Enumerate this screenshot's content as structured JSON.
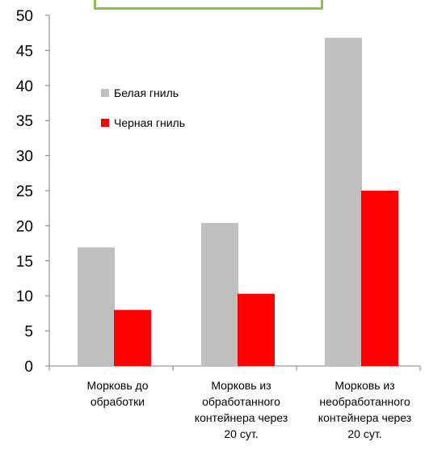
{
  "chart_data": {
    "type": "bar",
    "categories": [
      [
        "Морковь до",
        "обработки"
      ],
      [
        "Морковь из",
        "обработанного",
        "контейнера через",
        "20 сут."
      ],
      [
        "Морковь из",
        "необработанного",
        "контейнера через",
        "20 сут."
      ]
    ],
    "series": [
      {
        "name": "Белая гниль",
        "color": "#bfbfbf",
        "values": [
          16.9,
          20.4,
          46.8
        ]
      },
      {
        "name": "Черная гниль",
        "color": "#ff0000",
        "values": [
          8.0,
          10.3,
          25.0
        ]
      }
    ],
    "yticks": [
      "0",
      "5",
      "10",
      "15",
      "20",
      "25",
      "30",
      "35",
      "40",
      "45",
      "50"
    ],
    "ylim": [
      0,
      50
    ],
    "grid": false,
    "legend_position": "top-left inside plot"
  }
}
